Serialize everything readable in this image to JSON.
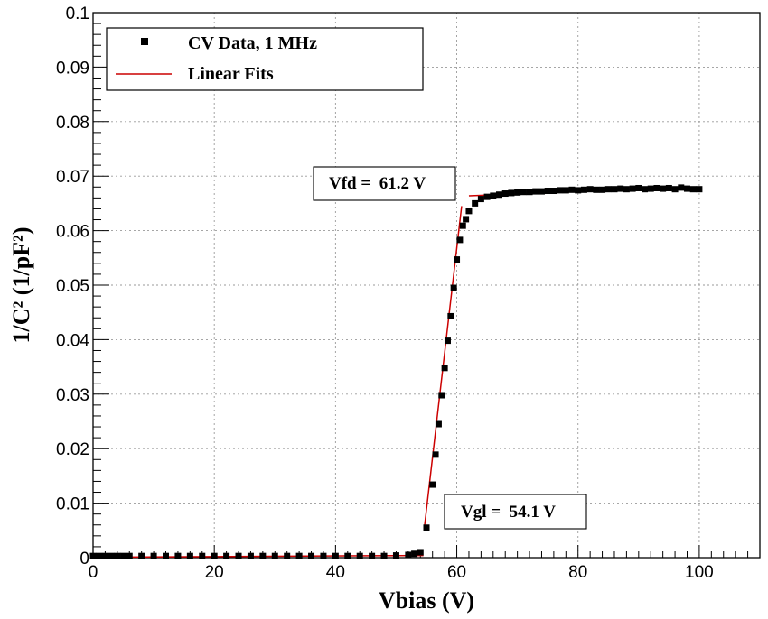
{
  "chart_data": {
    "type": "scatter",
    "title": "",
    "xlabel": "Vbias (V)",
    "ylabel": "1/C² (1/pF²)",
    "xlim": [
      0,
      110
    ],
    "ylim": [
      0,
      0.1
    ],
    "x_ticks": [
      0,
      20,
      40,
      60,
      80,
      100
    ],
    "x_minor_step": 2,
    "y_ticks": [
      0,
      0.01,
      0.02,
      0.03,
      0.04,
      0.05,
      0.06,
      0.07,
      0.08,
      0.09,
      0.1
    ],
    "y_tick_labels": [
      "0",
      "0.01",
      "0.02",
      "0.03",
      "0.04",
      "0.05",
      "0.06",
      "0.07",
      "0.08",
      "0.09",
      "0.1"
    ],
    "y_minor_step": 0.002,
    "grid": true,
    "legend": {
      "placement": "top-left",
      "entries": [
        {
          "label": "CV Data, 1 MHz",
          "marker": "square",
          "color": "#000000"
        },
        {
          "label": "Linear Fits",
          "marker": "line",
          "color": "#cc0000"
        }
      ]
    },
    "series": [
      {
        "name": "CV Data, 1 MHz",
        "kind": "markers",
        "color": "#000000",
        "x": [
          0,
          1,
          2,
          3,
          4,
          5,
          6,
          8,
          10,
          12,
          14,
          16,
          18,
          20,
          22,
          24,
          26,
          28,
          30,
          32,
          34,
          36,
          38,
          40,
          42,
          44,
          46,
          48,
          50,
          52,
          53,
          54,
          55,
          56,
          56.5,
          57,
          57.5,
          58,
          58.5,
          59,
          59.5,
          60,
          60.5,
          61,
          61.5,
          62,
          63,
          64,
          65,
          66,
          67,
          68,
          69,
          70,
          71,
          72,
          73,
          74,
          75,
          76,
          77,
          78,
          79,
          80,
          81,
          82,
          83,
          84,
          85,
          86,
          87,
          88,
          89,
          90,
          91,
          92,
          93,
          94,
          95,
          96,
          97,
          98,
          99,
          100
        ],
        "y": [
          0.0003,
          0.0003,
          0.0003,
          0.0003,
          0.0003,
          0.0003,
          0.0003,
          0.0003,
          0.0003,
          0.0003,
          0.0003,
          0.0003,
          0.0003,
          0.0003,
          0.0003,
          0.0003,
          0.0003,
          0.0003,
          0.0003,
          0.0003,
          0.0003,
          0.0003,
          0.0003,
          0.0003,
          0.0003,
          0.0003,
          0.0003,
          0.0003,
          0.0004,
          0.0005,
          0.0007,
          0.001,
          0.0055,
          0.0134,
          0.0189,
          0.0245,
          0.0298,
          0.0348,
          0.0398,
          0.0443,
          0.0495,
          0.0547,
          0.0583,
          0.0609,
          0.0621,
          0.0636,
          0.065,
          0.0658,
          0.0662,
          0.0664,
          0.0666,
          0.0668,
          0.0669,
          0.067,
          0.0671,
          0.0671,
          0.0672,
          0.0672,
          0.0673,
          0.0673,
          0.0674,
          0.0674,
          0.0675,
          0.0674,
          0.0675,
          0.0676,
          0.0675,
          0.0675,
          0.0676,
          0.0676,
          0.0677,
          0.0676,
          0.0677,
          0.0678,
          0.0676,
          0.0677,
          0.0678,
          0.0677,
          0.0678,
          0.0676,
          0.0679,
          0.0677,
          0.0676,
          0.0676
        ]
      },
      {
        "name": "Linear Fits",
        "kind": "line",
        "color": "#cc0000",
        "segments": [
          {
            "x": [
              5,
              54.5
            ],
            "y": [
              0.0001,
              0.0004
            ]
          },
          {
            "x": [
              54.6,
              60.8
            ],
            "y": [
              0.005,
              0.0645
            ]
          },
          {
            "x": [
              62,
              100
            ],
            "y": [
              0.0664,
              0.068
            ]
          }
        ]
      }
    ],
    "annotations": [
      {
        "id": "vfd",
        "text": "Vfd =  61.2 V",
        "x": 41.8,
        "y": 0.0684
      },
      {
        "id": "vgl",
        "text": "Vgl =  54.1 V",
        "x": 57.3,
        "y": 0.0103
      }
    ]
  }
}
